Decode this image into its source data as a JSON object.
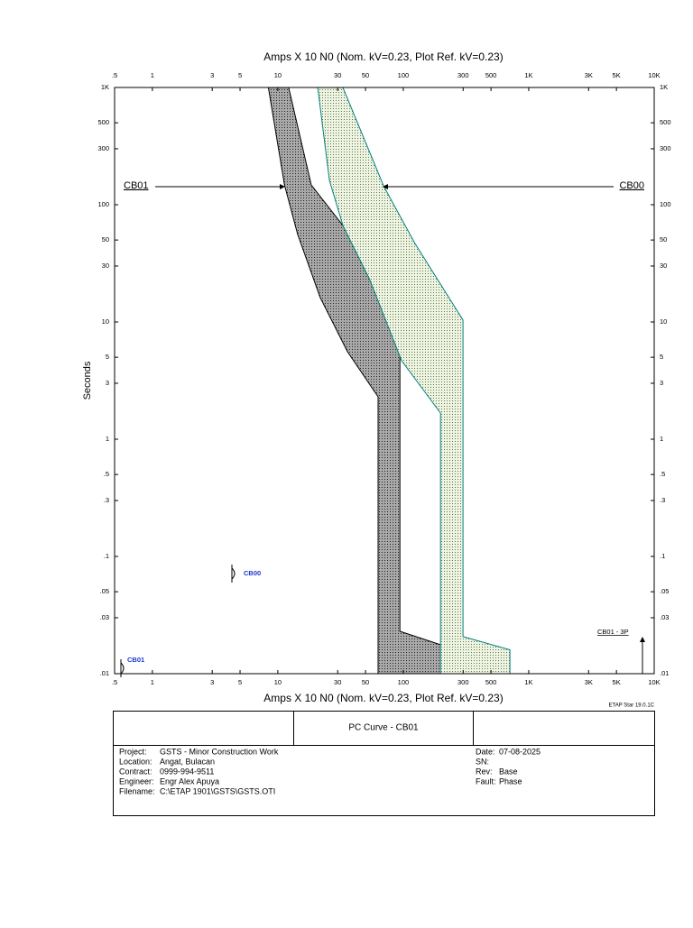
{
  "chart_data": {
    "type": "band",
    "title": "Amps X 10 N0 (Nom. kV=0.23, Plot Ref. kV=0.23)",
    "y_label": "Seconds",
    "log_x": true,
    "log_y": true,
    "xlim": [
      0.5,
      10000
    ],
    "ylim": [
      0.01,
      1000
    ],
    "xticks": [
      {
        "value": 0.5,
        "label": ".5"
      },
      1,
      3,
      5,
      10,
      30,
      50,
      100,
      300,
      500,
      {
        "value": 1000,
        "label": "1K"
      },
      {
        "value": 3000,
        "label": "3K"
      },
      {
        "value": 5000,
        "label": "5K"
      },
      {
        "value": 10000,
        "label": "10K"
      }
    ],
    "yticks": [
      {
        "value": 1000,
        "label": "1K"
      },
      500,
      300,
      100,
      50,
      30,
      10,
      5,
      3,
      1,
      {
        "value": 0.5,
        "label": ".5"
      },
      {
        "value": 0.3,
        "label": ".3"
      },
      {
        "value": 0.1,
        "label": ".1"
      },
      {
        "value": 0.05,
        "label": ".05"
      },
      {
        "value": 0.03,
        "label": ".03"
      },
      {
        "value": 0.01,
        "label": ".01"
      }
    ],
    "series": [
      {
        "name": "CB01",
        "color": "#000000",
        "fill": "#a8a8a8",
        "x": [
          8.4,
          11.3,
          14.4,
          21.8,
          35.9,
          63,
          63,
          262,
          262,
          94,
          94,
          50,
          33,
          18.5,
          12.2
        ],
        "values": [
          1000,
          147,
          55.7,
          16.1,
          5.57,
          2.3,
          0.01,
          0.01,
          0.016,
          0.023,
          11.9,
          30,
          66.5,
          147,
          1000
        ]
      },
      {
        "name": "CB00",
        "color": "#008080",
        "fill": "#eef3e4",
        "x": [
          20.8,
          25.8,
          33,
          54,
          97,
          198,
          198,
          708,
          708,
          299,
          299,
          124,
          70,
          33
        ],
        "values": [
          1000,
          161,
          66.5,
          23,
          4.67,
          1.67,
          0.01,
          0.01,
          0.016,
          0.0207,
          10.4,
          46.7,
          143,
          1000
        ]
      }
    ],
    "annotations": [
      "CB00",
      "CB01",
      "CB01 - 3P"
    ]
  },
  "title_block": {
    "software": "ETAP Star 19.0.1C",
    "title": "PC Curve - CB01",
    "left": [
      {
        "label": "Project:",
        "value": "GSTS - Minor Construction Work"
      },
      {
        "label": "Location:",
        "value": "Angat, Bulacan"
      },
      {
        "label": "Contract:",
        "value": "0999-994-9511"
      },
      {
        "label": "Engineer:",
        "value": "Engr Alex Apuya"
      },
      {
        "label": "Filename:",
        "value": "C:\\ETAP 1901\\GSTS\\GSTS.OTI"
      }
    ],
    "right": [
      {
        "label": "Date:",
        "value": "07-08-2025"
      },
      {
        "label": "SN:"
      },
      {
        "label": "Rev:",
        "value": "Base"
      },
      {
        "label": "Fault:",
        "value": "Phase"
      }
    ]
  }
}
